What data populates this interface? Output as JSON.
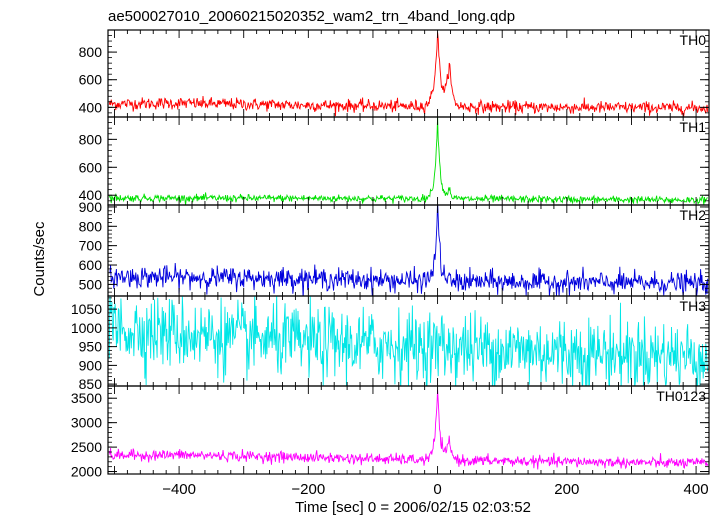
{
  "title": "ae500027010_20060215020352_wam2_trn_4band_long.qdp",
  "ylabel": "Counts/sec",
  "xlabel": "Time [sec] 0 = 2006/02/15 02:03:52",
  "chart_data": {
    "type": "line",
    "xlim": [
      -510,
      420
    ],
    "x_ticks": [
      -400,
      -200,
      0,
      200,
      400
    ],
    "x_tick_labels": [
      "−400",
      "−200",
      "0",
      "200",
      "400"
    ],
    "panels": [
      {
        "name": "TH0",
        "color": "#ff0000",
        "ylim": [
          330,
          960
        ],
        "y_ticks": [
          400,
          600,
          800
        ],
        "y_tick_labels": [
          "400",
          "600",
          "800"
        ],
        "baseline": [
          [
            -510,
            425
          ],
          [
            -400,
            430
          ],
          [
            -200,
            415
          ],
          [
            0,
            405
          ],
          [
            200,
            400
          ],
          [
            420,
            395
          ]
        ],
        "noise": 22,
        "peaks": [
          [
            0,
            950,
            5
          ],
          [
            18,
            740,
            4
          ]
        ],
        "series": [
          {
            "x": -500,
            "y": 425
          },
          {
            "x": -400,
            "y": 430
          },
          {
            "x": -200,
            "y": 415
          },
          {
            "x": 0,
            "y": 950
          },
          {
            "x": 18,
            "y": 740
          },
          {
            "x": 200,
            "y": 400
          },
          {
            "x": 410,
            "y": 395
          }
        ]
      },
      {
        "name": "TH1",
        "color": "#00e000",
        "ylim": [
          330,
          960
        ],
        "y_ticks": [
          400,
          600,
          800
        ],
        "y_tick_labels": [
          "400",
          "600",
          "800"
        ],
        "baseline": [
          [
            -510,
            380
          ],
          [
            -200,
            378
          ],
          [
            0,
            375
          ],
          [
            200,
            370
          ],
          [
            420,
            365
          ]
        ],
        "noise": 13,
        "peaks": [
          [
            0,
            950,
            4
          ],
          [
            18,
            450,
            3
          ]
        ],
        "series": [
          {
            "x": -500,
            "y": 380
          },
          {
            "x": -200,
            "y": 378
          },
          {
            "x": 0,
            "y": 950
          },
          {
            "x": 18,
            "y": 450
          },
          {
            "x": 200,
            "y": 370
          },
          {
            "x": 410,
            "y": 365
          }
        ]
      },
      {
        "name": "TH2",
        "color": "#0000dd",
        "ylim": [
          440,
          910
        ],
        "y_ticks": [
          500,
          600,
          700,
          800,
          900
        ],
        "y_tick_labels": [
          "500",
          "600",
          "700",
          "800",
          "900"
        ],
        "baseline": [
          [
            -510,
            540
          ],
          [
            -200,
            530
          ],
          [
            0,
            515
          ],
          [
            200,
            510
          ],
          [
            420,
            505
          ]
        ],
        "noise": 28,
        "peaks": [
          [
            0,
            900,
            4
          ]
        ],
        "series": [
          {
            "x": -500,
            "y": 540
          },
          {
            "x": -200,
            "y": 530
          },
          {
            "x": 0,
            "y": 900
          },
          {
            "x": 200,
            "y": 510
          },
          {
            "x": 410,
            "y": 505
          }
        ]
      },
      {
        "name": "TH3",
        "color": "#00e6e6",
        "ylim": [
          845,
          1085
        ],
        "y_ticks": [
          850,
          900,
          950,
          1000,
          1050
        ],
        "y_tick_labels": [
          "850",
          "900",
          "950",
          "1000",
          "1050"
        ],
        "baseline": [
          [
            -510,
            1000
          ],
          [
            -400,
            985
          ],
          [
            -200,
            960
          ],
          [
            0,
            950
          ],
          [
            200,
            935
          ],
          [
            420,
            925
          ]
        ],
        "noise": 48,
        "peaks": [],
        "series": [
          {
            "x": -500,
            "y": 1000
          },
          {
            "x": -400,
            "y": 985
          },
          {
            "x": -200,
            "y": 960
          },
          {
            "x": 0,
            "y": 950
          },
          {
            "x": 200,
            "y": 935
          },
          {
            "x": 410,
            "y": 925
          }
        ]
      },
      {
        "name": "TH0123",
        "color": "#ff00ff",
        "ylim": [
          1950,
          3750
        ],
        "y_ticks": [
          2000,
          2500,
          3000,
          3500
        ],
        "y_tick_labels": [
          "2000",
          "2500",
          "3000",
          "3500"
        ],
        "baseline": [
          [
            -510,
            2330
          ],
          [
            -400,
            2340
          ],
          [
            -200,
            2290
          ],
          [
            0,
            2230
          ],
          [
            200,
            2200
          ],
          [
            420,
            2170
          ]
        ],
        "noise": 55,
        "peaks": [
          [
            0,
            3680,
            4
          ],
          [
            18,
            2650,
            4
          ]
        ],
        "series": [
          {
            "x": -500,
            "y": 2330
          },
          {
            "x": -400,
            "y": 2340
          },
          {
            "x": -200,
            "y": 2290
          },
          {
            "x": 0,
            "y": 3680
          },
          {
            "x": 18,
            "y": 2650
          },
          {
            "x": 200,
            "y": 2200
          },
          {
            "x": 410,
            "y": 2170
          }
        ]
      }
    ]
  }
}
